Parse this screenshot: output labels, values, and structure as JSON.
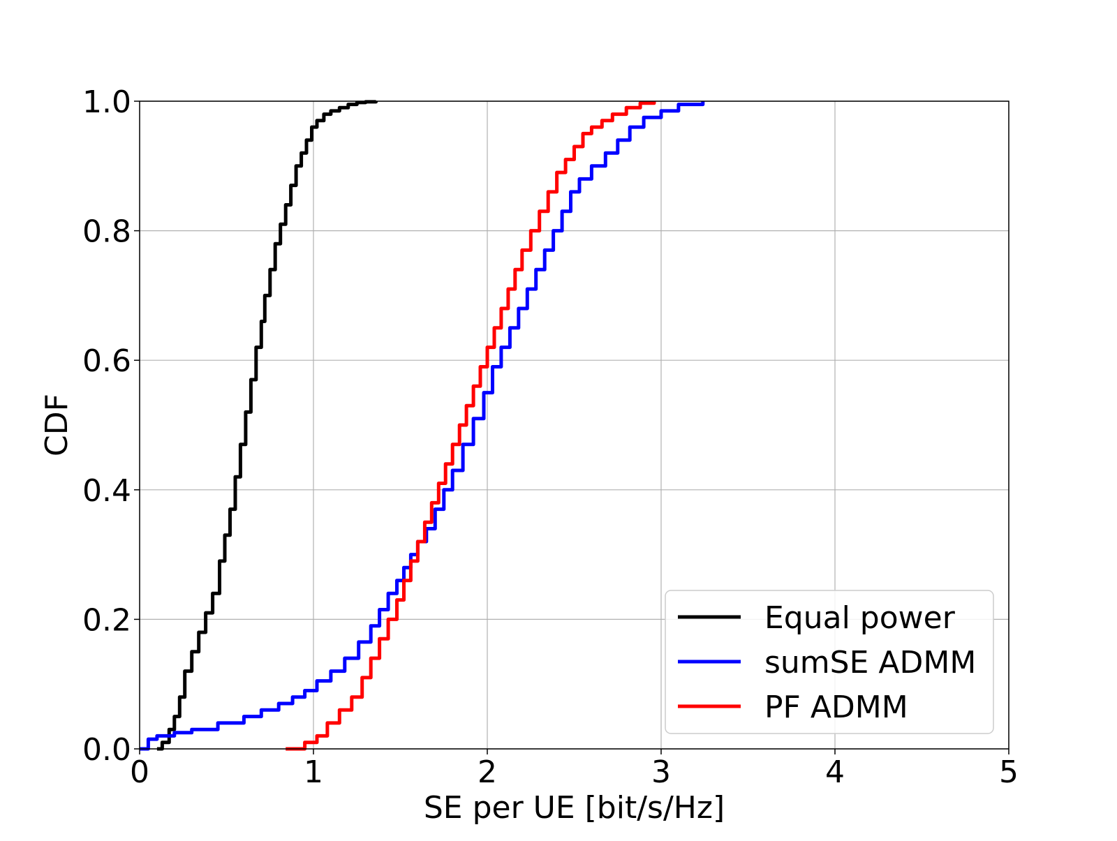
{
  "chart_data": {
    "type": "line",
    "title": "",
    "xlabel": "SE per UE [bit/s/Hz]",
    "ylabel": "CDF",
    "xlim": [
      0,
      5
    ],
    "ylim": [
      0,
      1
    ],
    "xticks": [
      0,
      1,
      2,
      3,
      4,
      5
    ],
    "xtick_labels": [
      "0",
      "1",
      "2",
      "3",
      "4",
      "5"
    ],
    "yticks": [
      0,
      0.2,
      0.4,
      0.6,
      0.8,
      1.0
    ],
    "ytick_labels": [
      "0.0",
      "0.2",
      "0.4",
      "0.6",
      "0.8",
      "1.0"
    ],
    "grid": true,
    "legend_position": "bottom-right",
    "series": [
      {
        "name": "Equal power",
        "color": "#000000",
        "x": [
          0.1,
          0.13,
          0.17,
          0.2,
          0.23,
          0.26,
          0.3,
          0.34,
          0.38,
          0.42,
          0.46,
          0.49,
          0.52,
          0.55,
          0.58,
          0.61,
          0.64,
          0.67,
          0.7,
          0.72,
          0.75,
          0.78,
          0.81,
          0.84,
          0.87,
          0.9,
          0.93,
          0.96,
          0.99,
          1.02,
          1.06,
          1.1,
          1.15,
          1.2,
          1.25,
          1.3,
          1.36
        ],
        "y": [
          0.0,
          0.01,
          0.03,
          0.05,
          0.08,
          0.12,
          0.15,
          0.18,
          0.21,
          0.24,
          0.29,
          0.33,
          0.37,
          0.42,
          0.47,
          0.52,
          0.57,
          0.62,
          0.66,
          0.7,
          0.74,
          0.78,
          0.81,
          0.84,
          0.87,
          0.9,
          0.92,
          0.94,
          0.96,
          0.97,
          0.98,
          0.985,
          0.99,
          0.995,
          0.998,
          0.999,
          1.0
        ]
      },
      {
        "name": "sumSE ADMM",
        "color": "#0000ff",
        "x": [
          0.0,
          0.05,
          0.1,
          0.2,
          0.3,
          0.45,
          0.6,
          0.7,
          0.8,
          0.88,
          0.95,
          1.02,
          1.1,
          1.18,
          1.26,
          1.33,
          1.38,
          1.43,
          1.48,
          1.52,
          1.56,
          1.6,
          1.65,
          1.7,
          1.75,
          1.8,
          1.86,
          1.92,
          1.98,
          2.03,
          2.08,
          2.13,
          2.18,
          2.23,
          2.28,
          2.33,
          2.38,
          2.43,
          2.48,
          2.53,
          2.6,
          2.68,
          2.75,
          2.82,
          2.9,
          3.0,
          3.1,
          3.24
        ],
        "y": [
          0.0,
          0.015,
          0.02,
          0.025,
          0.03,
          0.04,
          0.05,
          0.06,
          0.07,
          0.08,
          0.09,
          0.105,
          0.12,
          0.14,
          0.165,
          0.19,
          0.215,
          0.24,
          0.26,
          0.28,
          0.3,
          0.32,
          0.34,
          0.37,
          0.4,
          0.43,
          0.47,
          0.51,
          0.55,
          0.59,
          0.62,
          0.65,
          0.68,
          0.71,
          0.74,
          0.77,
          0.8,
          0.83,
          0.86,
          0.88,
          0.9,
          0.92,
          0.94,
          0.96,
          0.975,
          0.985,
          0.995,
          1.0
        ]
      },
      {
        "name": "PF ADMM",
        "color": "#ff0000",
        "x": [
          0.84,
          0.95,
          1.02,
          1.08,
          1.15,
          1.22,
          1.28,
          1.33,
          1.38,
          1.43,
          1.48,
          1.52,
          1.56,
          1.6,
          1.64,
          1.68,
          1.72,
          1.76,
          1.8,
          1.84,
          1.88,
          1.92,
          1.96,
          2.0,
          2.04,
          2.08,
          2.12,
          2.16,
          2.2,
          2.25,
          2.3,
          2.35,
          2.4,
          2.45,
          2.5,
          2.55,
          2.6,
          2.66,
          2.72,
          2.8,
          2.88,
          2.96
        ],
        "y": [
          0.0,
          0.01,
          0.02,
          0.04,
          0.06,
          0.08,
          0.11,
          0.14,
          0.17,
          0.2,
          0.23,
          0.26,
          0.29,
          0.32,
          0.35,
          0.38,
          0.41,
          0.44,
          0.47,
          0.5,
          0.53,
          0.56,
          0.59,
          0.62,
          0.65,
          0.68,
          0.71,
          0.74,
          0.77,
          0.8,
          0.83,
          0.86,
          0.89,
          0.91,
          0.93,
          0.95,
          0.96,
          0.97,
          0.98,
          0.99,
          0.997,
          1.0
        ]
      }
    ]
  }
}
